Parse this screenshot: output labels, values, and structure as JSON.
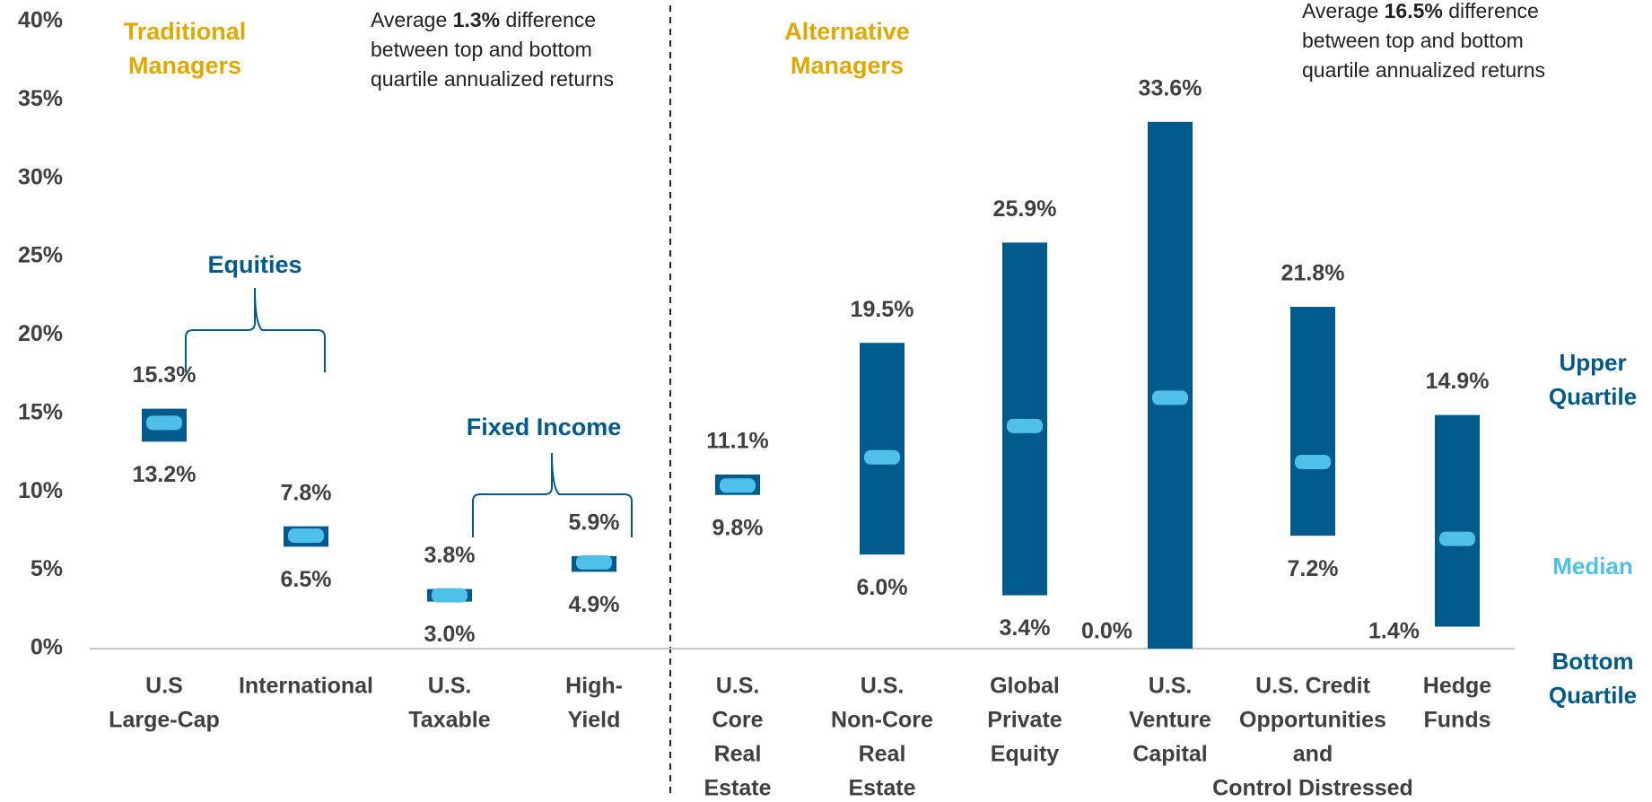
{
  "chart_data": {
    "type": "range_bar",
    "categories": [
      [
        "U.S",
        "Large-Cap"
      ],
      [
        "International"
      ],
      [
        "U.S.",
        "Taxable"
      ],
      [
        "High-",
        "Yield"
      ],
      [
        "U.S.",
        "Core",
        "Real",
        "Estate"
      ],
      [
        "U.S.",
        "Non-Core",
        "Real",
        "Estate"
      ],
      [
        "Global",
        "Private",
        "Equity"
      ],
      [
        "U.S.",
        "Venture",
        "Capital"
      ],
      [
        "U.S. Credit",
        "Opportunities",
        "and",
        "Control Distressed"
      ],
      [
        "Hedge",
        "Funds"
      ]
    ],
    "series": [
      {
        "name": "Upper Quartile",
        "color": "#005a8c",
        "values": [
          15.3,
          7.8,
          3.8,
          5.9,
          11.1,
          19.5,
          25.9,
          33.6,
          21.8,
          14.9
        ],
        "value_labels": [
          "15.3%",
          "7.8%",
          "3.8%",
          "5.9%",
          "11.1%",
          "19.5%",
          "25.9%",
          "33.6%",
          "21.8%",
          "14.9%"
        ]
      },
      {
        "name": "Median",
        "color": "#4fc0ea",
        "values": [
          14.4,
          7.2,
          3.4,
          5.5,
          10.4,
          12.2,
          14.2,
          16.0,
          11.9,
          7.0
        ]
      },
      {
        "name": "Bottom Quartile",
        "color": "#005a8c",
        "values": [
          13.2,
          6.5,
          3.0,
          4.9,
          9.8,
          6.0,
          3.4,
          0.0,
          7.2,
          1.4
        ],
        "value_labels": [
          "13.2%",
          "6.5%",
          "3.0%",
          "4.9%",
          "9.8%",
          "6.0%",
          "3.4%",
          "0.0%",
          "7.2%",
          "1.4%"
        ]
      }
    ],
    "ylim": [
      0,
      40
    ],
    "yticks": [
      {
        "value": 0,
        "label": "0%"
      },
      {
        "value": 5,
        "label": "5%"
      },
      {
        "value": 10,
        "label": "10%"
      },
      {
        "value": 15,
        "label": "15%"
      },
      {
        "value": 20,
        "label": "20%"
      },
      {
        "value": 25,
        "label": "25%"
      },
      {
        "value": 30,
        "label": "30%"
      },
      {
        "value": 35,
        "label": "35%"
      },
      {
        "value": 40,
        "label": "40%"
      }
    ],
    "annotations": {
      "traditional": "Traditional Managers",
      "alternative": "Alternative Managers",
      "equities": "Equities",
      "fixed_income": "Fixed Income",
      "note_traditional": [
        "Average ",
        "1.3%",
        " difference between top and bottom quartile annualized returns"
      ],
      "note_alternative": [
        "Average ",
        "16.5%",
        " difference between top and bottom quartile annualized returns"
      ]
    }
  }
}
